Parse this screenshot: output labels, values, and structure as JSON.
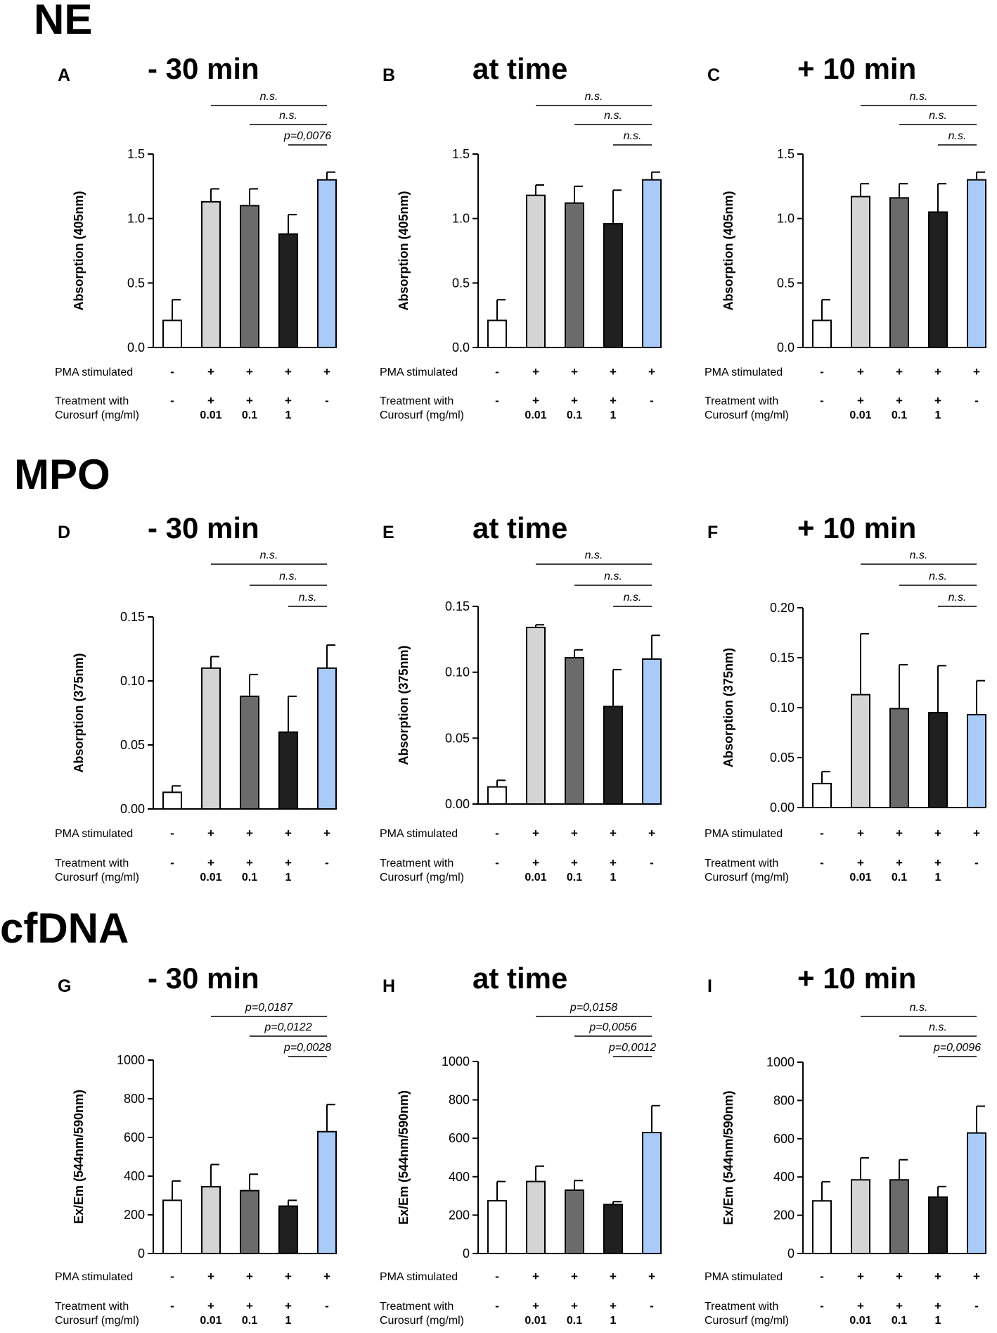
{
  "colors": {
    "untreated": "#ffffff",
    "curosurf_0_01": "#d4d4d4",
    "curosurf_0_1": "#6b6b6b",
    "curosurf_1": "#202020",
    "pma_only": "#a8cbf7",
    "axis": "#000000"
  },
  "sections": [
    "NE",
    "MPO",
    "cfDNA"
  ],
  "row_labels": {
    "pma": "PMA stimulated",
    "treat_line1": "Treatment with",
    "treat_line2": "Curosurf (mg/ml)"
  },
  "pma_signs": [
    "-",
    "+",
    "+",
    "+",
    "+"
  ],
  "treat_signs": [
    "-",
    "+",
    "+",
    "+",
    "-"
  ],
  "concentrations": [
    "",
    "0.01",
    "0.1",
    "1",
    ""
  ],
  "chart_data": [
    {
      "type": "bar",
      "letter": "A",
      "title": "- 30 min",
      "ylabel": "Absorption (405nm)",
      "ylim": [
        0,
        1.5
      ],
      "yticks": [
        "0.0",
        "0.5",
        "1.0",
        "1.5"
      ],
      "categories": [
        "PMA- untreated",
        "PMA+ Curosurf 0.01",
        "PMA+ Curosurf 0.1",
        "PMA+ Curosurf 1",
        "PMA+ untreated"
      ],
      "values": [
        0.21,
        1.13,
        1.1,
        0.88,
        1.3
      ],
      "errors": [
        0.16,
        0.1,
        0.13,
        0.15,
        0.06
      ],
      "annotations": [
        "n.s.",
        "n.s.",
        "p=0,0076"
      ]
    },
    {
      "type": "bar",
      "letter": "B",
      "title": "at time",
      "ylabel": "Absorption (405nm)",
      "ylim": [
        0,
        1.5
      ],
      "yticks": [
        "0.0",
        "0.5",
        "1.0",
        "1.5"
      ],
      "categories": [
        "PMA- untreated",
        "PMA+ Curosurf 0.01",
        "PMA+ Curosurf 0.1",
        "PMA+ Curosurf 1",
        "PMA+ untreated"
      ],
      "values": [
        0.21,
        1.18,
        1.12,
        0.96,
        1.3
      ],
      "errors": [
        0.16,
        0.08,
        0.13,
        0.26,
        0.06
      ],
      "annotations": [
        "n.s.",
        "n.s.",
        "n.s."
      ]
    },
    {
      "type": "bar",
      "letter": "C",
      "title": "+ 10 min",
      "ylabel": "Absorption (405nm)",
      "ylim": [
        0,
        1.5
      ],
      "yticks": [
        "0.0",
        "0.5",
        "1.0",
        "1.5"
      ],
      "categories": [
        "PMA- untreated",
        "PMA+ Curosurf 0.01",
        "PMA+ Curosurf 0.1",
        "PMA+ Curosurf 1",
        "PMA+ untreated"
      ],
      "values": [
        0.21,
        1.17,
        1.16,
        1.05,
        1.3
      ],
      "errors": [
        0.16,
        0.1,
        0.11,
        0.22,
        0.06
      ],
      "annotations": [
        "n.s.",
        "n.s.",
        "n.s."
      ]
    },
    {
      "type": "bar",
      "letter": "D",
      "title": "- 30 min",
      "ylabel": "Absorption (375nm)",
      "ylim": [
        0,
        0.15
      ],
      "yticks": [
        "0.00",
        "0.05",
        "0.10",
        "0.15"
      ],
      "categories": [
        "PMA- untreated",
        "PMA+ Curosurf 0.01",
        "PMA+ Curosurf 0.1",
        "PMA+ Curosurf 1",
        "PMA+ untreated"
      ],
      "values": [
        0.013,
        0.11,
        0.088,
        0.06,
        0.11
      ],
      "errors": [
        0.005,
        0.009,
        0.017,
        0.028,
        0.018
      ],
      "annotations": [
        "n.s.",
        "n.s.",
        "n.s."
      ]
    },
    {
      "type": "bar",
      "letter": "E",
      "title": "at time",
      "ylabel": "Absorption (375nm)",
      "ylim": [
        0,
        0.15
      ],
      "yticks": [
        "0.00",
        "0.05",
        "0.10",
        "0.15"
      ],
      "categories": [
        "PMA- untreated",
        "PMA+ Curosurf 0.01",
        "PMA+ Curosurf 0.1",
        "PMA+ Curosurf 1",
        "PMA+ untreated"
      ],
      "values": [
        0.013,
        0.134,
        0.111,
        0.074,
        0.11
      ],
      "errors": [
        0.005,
        0.002,
        0.006,
        0.028,
        0.018
      ],
      "annotations": [
        "n.s.",
        "n.s.",
        "n.s."
      ]
    },
    {
      "type": "bar",
      "letter": "F",
      "title": "+ 10 min",
      "ylabel": "Absorption (375nm)",
      "ylim": [
        0,
        0.2
      ],
      "yticks": [
        "0.00",
        "0.05",
        "0.10",
        "0.15",
        "0.20"
      ],
      "categories": [
        "PMA- untreated",
        "PMA+ Curosurf 0.01",
        "PMA+ Curosurf 0.1",
        "PMA+ Curosurf 1",
        "PMA+ untreated"
      ],
      "values": [
        0.024,
        0.113,
        0.099,
        0.095,
        0.093
      ],
      "errors": [
        0.012,
        0.061,
        0.044,
        0.047,
        0.034
      ],
      "annotations": [
        "n.s.",
        "n.s.",
        "n.s."
      ]
    },
    {
      "type": "bar",
      "letter": "G",
      "title": "- 30 min",
      "ylabel": "Ex/Em (544nm/590nm)",
      "ylim": [
        0,
        1000
      ],
      "yticks": [
        "0",
        "200",
        "400",
        "600",
        "800",
        "1000"
      ],
      "categories": [
        "PMA- untreated",
        "PMA+ Curosurf 0.01",
        "PMA+ Curosurf 0.1",
        "PMA+ Curosurf 1",
        "PMA+ untreated"
      ],
      "values": [
        275,
        345,
        325,
        245,
        630
      ],
      "errors": [
        100,
        115,
        85,
        30,
        140
      ],
      "annotations": [
        "p=0,0187",
        "p=0,0122",
        "p=0,0028"
      ]
    },
    {
      "type": "bar",
      "letter": "H",
      "title": "at time",
      "ylabel": "Ex/Em (544nm/590nm)",
      "ylim": [
        0,
        1000
      ],
      "yticks": [
        "0",
        "200",
        "400",
        "600",
        "800",
        "1000"
      ],
      "categories": [
        "PMA- untreated",
        "PMA+ Curosurf 0.01",
        "PMA+ Curosurf 0.1",
        "PMA+ Curosurf 1",
        "PMA+ untreated"
      ],
      "values": [
        275,
        375,
        330,
        255,
        630
      ],
      "errors": [
        100,
        80,
        50,
        15,
        140
      ],
      "annotations": [
        "p=0,0158",
        "p=0,0056",
        "p=0,0012"
      ]
    },
    {
      "type": "bar",
      "letter": "I",
      "title": "+ 10 min",
      "ylabel": "Ex/Em (544nm/590nm)",
      "ylim": [
        0,
        1000
      ],
      "yticks": [
        "0",
        "200",
        "400",
        "600",
        "800",
        "1000"
      ],
      "categories": [
        "PMA- untreated",
        "PMA+ Curosurf 0.01",
        "PMA+ Curosurf 0.1",
        "PMA+ Curosurf 1",
        "PMA+ untreated"
      ],
      "values": [
        275,
        385,
        385,
        295,
        630
      ],
      "errors": [
        100,
        115,
        105,
        55,
        140
      ],
      "annotations": [
        "n.s.",
        "n.s.",
        "p=0,0096"
      ]
    }
  ]
}
